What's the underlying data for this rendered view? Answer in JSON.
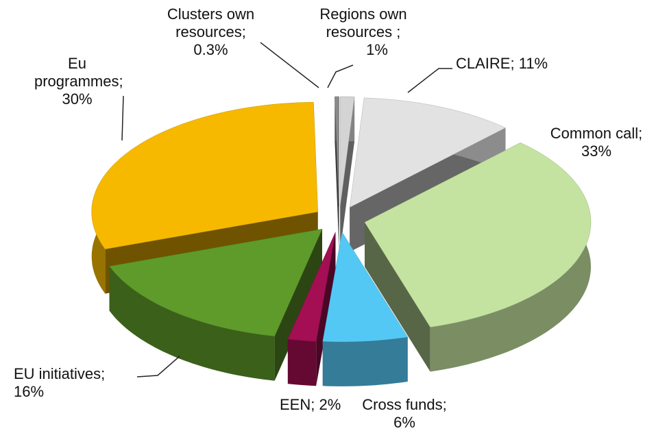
{
  "chart_data": {
    "type": "pie",
    "categories": [
      "Regions own resources ;",
      "CLAIRE;",
      "Common call;",
      "Cross funds;",
      "EEN;",
      "EU initiatives;",
      "Eu programmes;",
      "Clusters own resources;"
    ],
    "values": [
      1,
      11,
      33,
      6,
      2,
      16,
      30,
      0.3
    ],
    "value_labels": [
      "1%",
      "11%",
      "33%",
      "6%",
      "2%",
      "16%",
      "30%",
      "0.3%"
    ],
    "colors": [
      "#d4d4d4",
      "#e2e2e2",
      "#c4e3a0",
      "#54c8f5",
      "#a30f52",
      "#5f9b2a",
      "#f7b900",
      "#8a8a8a"
    ],
    "exploded": true,
    "three_d": true
  }
}
